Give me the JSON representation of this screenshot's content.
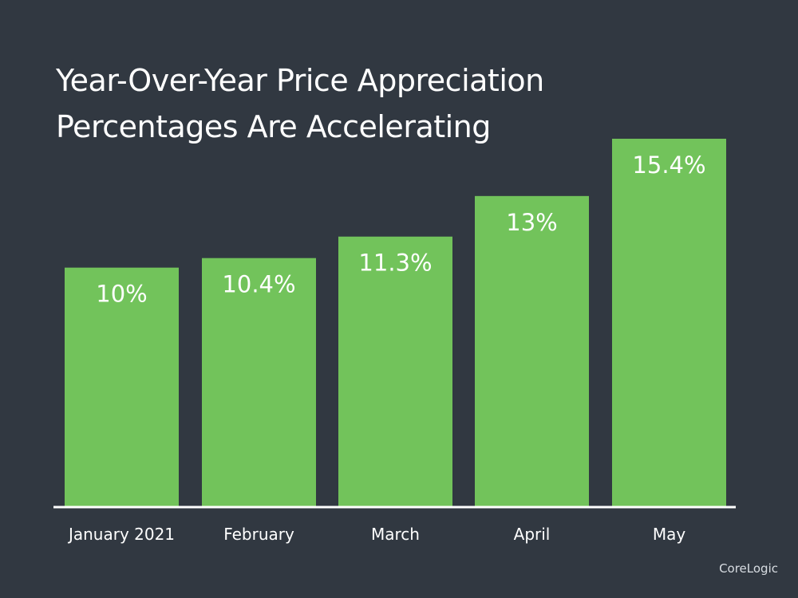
{
  "colors": {
    "background": "#313841",
    "bar": "#72c35b",
    "text": "#ffffff",
    "baseline": "#ffffff"
  },
  "chart_data": {
    "type": "bar",
    "title": "Year-Over-Year Price Appreciation Percentages Are Accelerating",
    "title_lines": [
      "Year-Over-Year Price Appreciation",
      "Percentages Are Accelerating"
    ],
    "categories": [
      "January 2021",
      "February",
      "March",
      "April",
      "May"
    ],
    "values": [
      10,
      10.4,
      11.3,
      13,
      15.4
    ],
    "data_labels": [
      "10%",
      "10.4%",
      "11.3%",
      "13%",
      "15.4%"
    ],
    "xlabel": "",
    "ylabel": "",
    "unit": "%",
    "ylim": [
      0,
      15.4
    ],
    "grid": false,
    "legend": "none"
  },
  "source": "CoreLogic"
}
